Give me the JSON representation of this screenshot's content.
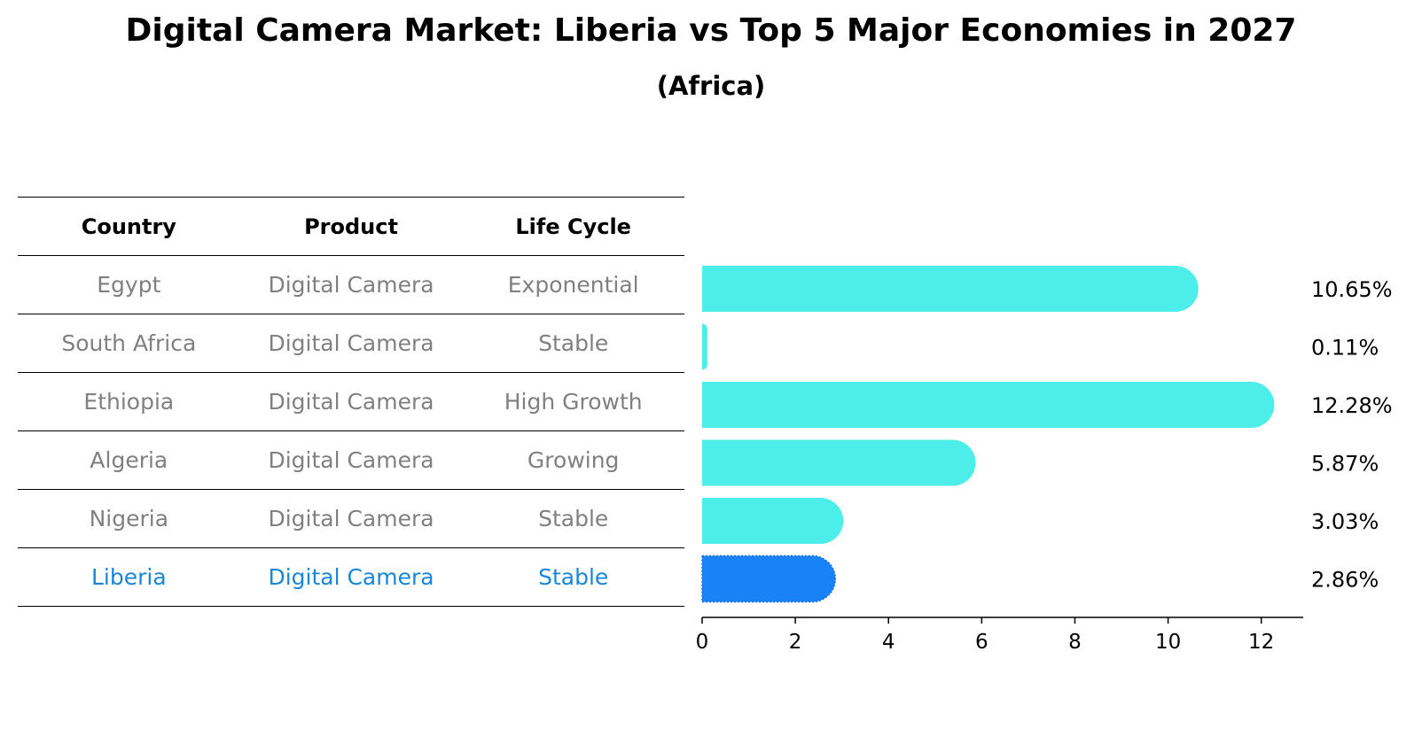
{
  "title": "Digital Camera Market: Liberia vs Top 5 Major Economies in 2027",
  "subtitle": "(Africa)",
  "table": {
    "headers": [
      "Country",
      "Product",
      "Life Cycle"
    ],
    "rows": [
      [
        "Egypt",
        "Digital Camera",
        "Exponential"
      ],
      [
        "South Africa",
        "Digital Camera",
        "Stable"
      ],
      [
        "Ethiopia",
        "Digital Camera",
        "High Growth"
      ],
      [
        "Algeria",
        "Digital Camera",
        "Growing"
      ],
      [
        "Nigeria",
        "Digital Camera",
        "Stable"
      ],
      [
        "Liberia",
        "Digital Camera",
        "Stable"
      ]
    ]
  },
  "colors": {
    "bar": "#4deeea",
    "highlight": "#1a82f7",
    "highlight_text": "#1a86d8",
    "table_text": "#808080"
  },
  "chart_data": {
    "type": "bar",
    "orientation": "horizontal",
    "title": "Digital Camera Market: Liberia vs Top 5 Major Economies in 2027",
    "subtitle": "(Africa)",
    "categories": [
      "Egypt",
      "South Africa",
      "Ethiopia",
      "Algeria",
      "Nigeria",
      "Liberia"
    ],
    "values": [
      10.65,
      0.11,
      12.28,
      5.87,
      3.03,
      2.86
    ],
    "labels": [
      "10.65%",
      "0.11%",
      "12.28%",
      "5.87%",
      "3.03%",
      "2.86%"
    ],
    "highlight": "Liberia",
    "xlim": [
      0,
      12.9
    ],
    "xticks": [
      0,
      2,
      4,
      6,
      8,
      10,
      12
    ],
    "xlabel": "",
    "ylabel": "",
    "grid": false
  }
}
